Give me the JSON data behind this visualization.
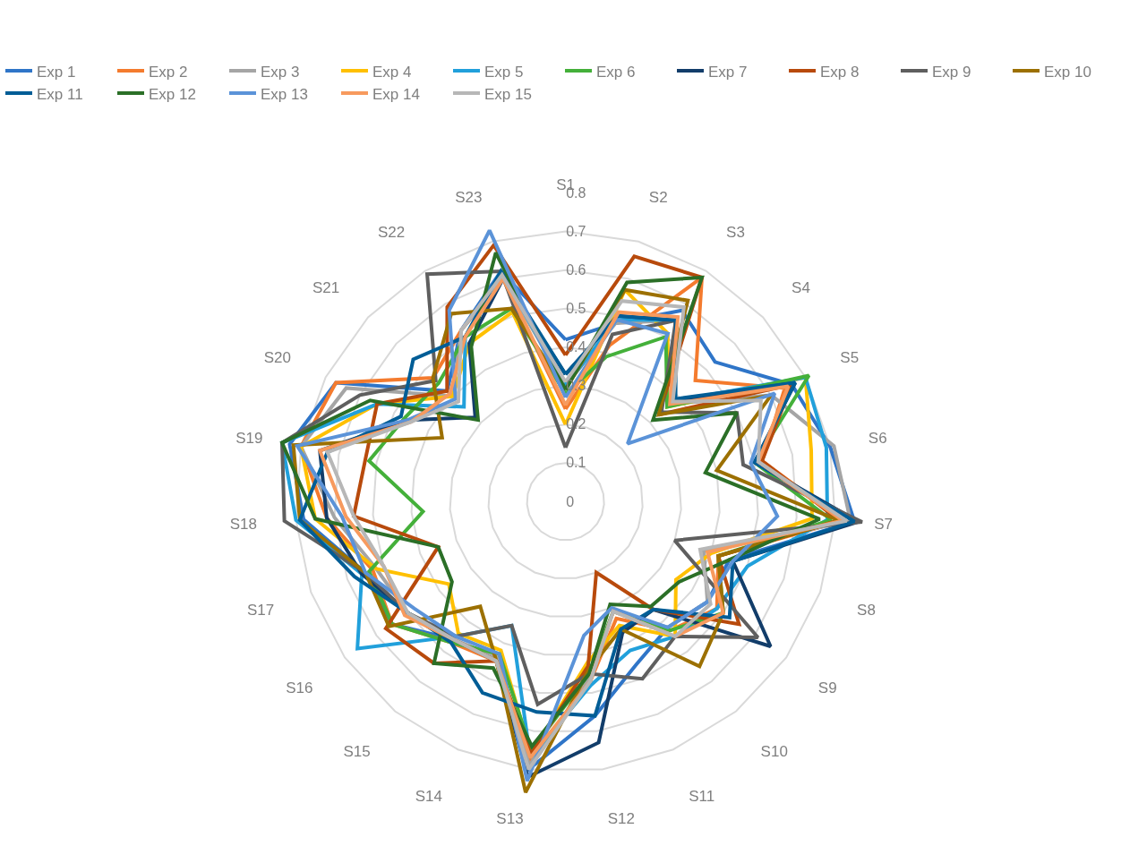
{
  "chart_data": {
    "type": "radar",
    "categories": [
      "S1",
      "S2",
      "S3",
      "S4",
      "S5",
      "S6",
      "S7",
      "S8",
      "S9",
      "S10",
      "S11",
      "S12",
      "S13",
      "S14",
      "S15",
      "S16",
      "S17",
      "S18",
      "S19",
      "S20",
      "S21",
      "S22",
      "S23"
    ],
    "ylim": [
      0,
      0.8
    ],
    "yticks": [
      0,
      0.1,
      0.2,
      0.3,
      0.4,
      0.5,
      0.6,
      0.7,
      0.8
    ],
    "grid": "y",
    "legend": "top",
    "marker": "none",
    "line_style": "solid",
    "series": [
      {
        "name": "Exp 1",
        "color": "#2f75c8",
        "values": [
          0.42,
          0.48,
          0.58,
          0.53,
          0.66,
          0.7,
          0.75,
          0.45,
          0.45,
          0.42,
          0.46,
          0.56,
          0.7,
          0.45,
          0.46,
          0.55,
          0.55,
          0.68,
          0.73,
          0.67,
          0.42,
          0.52,
          0.62
        ]
      },
      {
        "name": "Exp 2",
        "color": "#f47b2e",
        "values": [
          0.24,
          0.42,
          0.68,
          0.46,
          0.64,
          0.52,
          0.72,
          0.42,
          0.48,
          0.43,
          0.33,
          0.47,
          0.68,
          0.45,
          0.47,
          0.55,
          0.53,
          0.62,
          0.7,
          0.67,
          0.47,
          0.52,
          0.6
        ]
      },
      {
        "name": "Exp 3",
        "color": "#a5a5a5",
        "values": [
          0.3,
          0.48,
          0.55,
          0.37,
          0.6,
          0.71,
          0.74,
          0.38,
          0.45,
          0.42,
          0.31,
          0.46,
          0.69,
          0.44,
          0.46,
          0.5,
          0.52,
          0.6,
          0.7,
          0.64,
          0.4,
          0.52,
          0.6
        ]
      },
      {
        "name": "Exp 4",
        "color": "#ffc000",
        "values": [
          0.2,
          0.57,
          0.51,
          0.36,
          0.7,
          0.65,
          0.64,
          0.4,
          0.35,
          0.45,
          0.35,
          0.42,
          0.66,
          0.42,
          0.44,
          0.37,
          0.52,
          0.65,
          0.7,
          0.55,
          0.4,
          0.48,
          0.51
        ]
      },
      {
        "name": "Exp 5",
        "color": "#21a0db",
        "values": [
          0.3,
          0.49,
          0.55,
          0.38,
          0.7,
          0.69,
          0.68,
          0.5,
          0.48,
          0.45,
          0.42,
          0.48,
          0.67,
          0.35,
          0.45,
          0.66,
          0.56,
          0.7,
          0.75,
          0.55,
          0.36,
          0.5,
          0.62
        ]
      },
      {
        "name": "Exp 6",
        "color": "#44b03a",
        "values": [
          0.28,
          0.39,
          0.5,
          0.36,
          0.71,
          0.5,
          0.69,
          0.42,
          0.5,
          0.43,
          0.31,
          0.45,
          0.65,
          0.43,
          0.47,
          0.55,
          0.54,
          0.37,
          0.52,
          0.47,
          0.45,
          0.5,
          0.52
        ]
      },
      {
        "name": "Exp 7",
        "color": "#123d6a",
        "values": [
          0.33,
          0.5,
          0.55,
          0.38,
          0.67,
          0.5,
          0.76,
          0.46,
          0.65,
          0.36,
          0.37,
          0.63,
          0.72,
          0.45,
          0.46,
          0.5,
          0.56,
          0.62,
          0.65,
          0.46,
          0.32,
          0.48,
          0.6
        ]
      },
      {
        "name": "Exp 8",
        "color": "#b84a0c",
        "values": [
          0.38,
          0.66,
          0.68,
          0.33,
          0.66,
          0.52,
          0.71,
          0.42,
          0.55,
          0.36,
          0.2,
          0.43,
          0.66,
          0.45,
          0.54,
          0.57,
          0.35,
          0.55,
          0.53,
          0.55,
          0.42,
          0.59,
          0.69
        ]
      },
      {
        "name": "Exp 9",
        "color": "#5f5f5f",
        "values": [
          0.14,
          0.45,
          0.55,
          0.34,
          0.5,
          0.47,
          0.77,
          0.3,
          0.61,
          0.45,
          0.5,
          0.45,
          0.53,
          0.35,
          0.45,
          0.5,
          0.55,
          0.73,
          0.75,
          0.6,
          0.46,
          0.69,
          0.62
        ]
      },
      {
        "name": "Exp 10",
        "color": "#9c7000",
        "values": [
          0.29,
          0.57,
          0.61,
          0.33,
          0.6,
          0.4,
          0.71,
          0.42,
          0.5,
          0.55,
          0.36,
          0.44,
          0.76,
          0.45,
          0.35,
          0.56,
          0.55,
          0.69,
          0.72,
          0.36,
          0.47,
          0.57,
          0.52
        ]
      },
      {
        "name": "Exp 11",
        "color": "#005d96",
        "values": [
          0.33,
          0.5,
          0.55,
          0.39,
          0.67,
          0.5,
          0.75,
          0.46,
          0.52,
          0.36,
          0.36,
          0.56,
          0.55,
          0.54,
          0.47,
          0.5,
          0.58,
          0.69,
          0.63,
          0.48,
          0.54,
          0.5,
          0.62
        ]
      },
      {
        "name": "Exp 12",
        "color": "#2b6f27",
        "values": [
          0.29,
          0.59,
          0.68,
          0.31,
          0.5,
          0.37,
          0.66,
          0.45,
          0.36,
          0.35,
          0.29,
          0.45,
          0.64,
          0.47,
          0.54,
          0.36,
          0.35,
          0.65,
          0.75,
          0.57,
          0.31,
          0.47,
          0.67
        ]
      },
      {
        "name": "Exp 13",
        "color": "#5b93d8",
        "values": [
          0.27,
          0.49,
          0.51,
          0.22,
          0.61,
          0.49,
          0.55,
          0.46,
          0.45,
          0.42,
          0.3,
          0.35,
          0.73,
          0.43,
          0.45,
          0.48,
          0.55,
          0.58,
          0.71,
          0.46,
          0.39,
          0.58,
          0.73
        ]
      },
      {
        "name": "Exp 14",
        "color": "#f79a5e",
        "values": [
          0.25,
          0.51,
          0.56,
          0.37,
          0.65,
          0.51,
          0.72,
          0.39,
          0.5,
          0.45,
          0.31,
          0.47,
          0.67,
          0.45,
          0.46,
          0.51,
          0.5,
          0.57,
          0.65,
          0.45,
          0.41,
          0.5,
          0.6
        ]
      },
      {
        "name": "Exp 15",
        "color": "#b7b7b7",
        "values": [
          0.31,
          0.54,
          0.59,
          0.38,
          0.57,
          0.51,
          0.73,
          0.37,
          0.46,
          0.45,
          0.31,
          0.47,
          0.7,
          0.45,
          0.46,
          0.5,
          0.5,
          0.55,
          0.63,
          0.45,
          0.38,
          0.52,
          0.61
        ]
      }
    ]
  }
}
